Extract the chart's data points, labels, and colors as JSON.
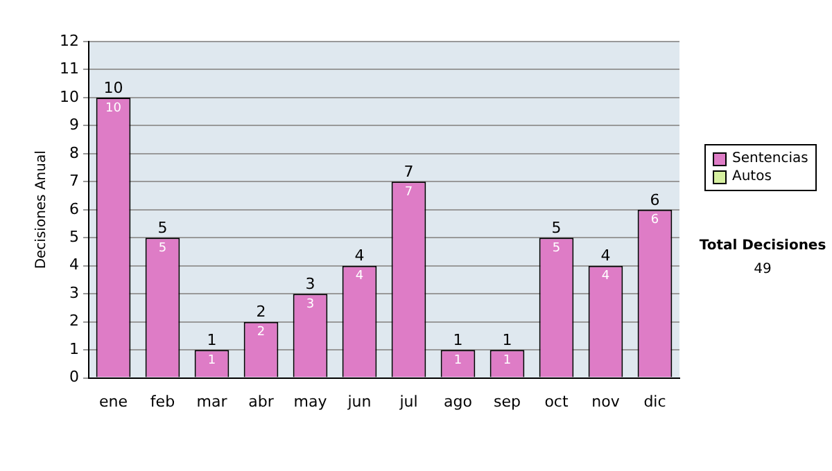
{
  "chart_data": {
    "type": "bar",
    "stacked": true,
    "ylabel": "Decisiones Anual",
    "categories": [
      "ene",
      "feb",
      "mar",
      "abr",
      "may",
      "jun",
      "jul",
      "ago",
      "sep",
      "oct",
      "nov",
      "dic"
    ],
    "series": [
      {
        "name": "Sentencias",
        "color": "#de7cc6",
        "values": [
          10,
          5,
          1,
          2,
          3,
          4,
          7,
          1,
          1,
          5,
          4,
          6
        ],
        "value_labels": [
          "10",
          "5",
          "1",
          "2",
          "3",
          "4",
          "7",
          "1",
          "1",
          "5",
          "4",
          "6"
        ]
      },
      {
        "name": "Autos",
        "color": "#d6f0a0",
        "values": [
          0,
          0,
          0,
          0,
          0,
          0,
          0,
          0,
          0,
          0,
          0,
          0
        ],
        "value_labels": [
          null,
          null,
          null,
          null,
          null,
          null,
          null,
          null,
          null,
          null,
          null,
          null
        ]
      }
    ],
    "totals": [
      "10",
      "5",
      "1",
      "2",
      "3",
      "4",
      "7",
      "1",
      "1",
      "5",
      "4",
      "6"
    ],
    "ylim": [
      0,
      12
    ],
    "yticks": [
      0,
      1,
      2,
      3,
      4,
      5,
      6,
      7,
      8,
      9,
      10,
      11,
      12
    ],
    "grid": "y",
    "legend": "right",
    "annotations": [
      "Total Decisiones",
      "49"
    ]
  }
}
